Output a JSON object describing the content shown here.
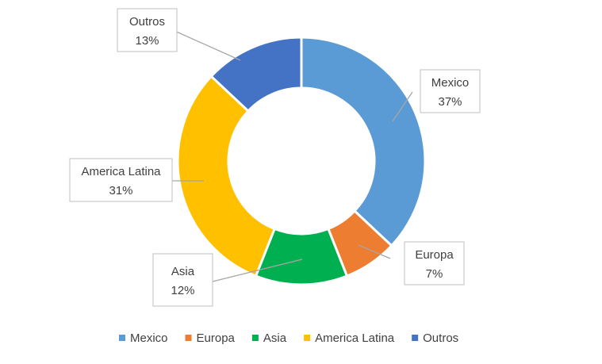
{
  "chart_data": {
    "type": "pie",
    "variant": "doughnut",
    "legend_position": "bottom",
    "categories": [
      "Mexico",
      "Europa",
      "Asia",
      "America Latina",
      "Outros"
    ],
    "values": [
      37,
      7,
      12,
      31,
      13
    ],
    "value_labels": [
      "37%",
      "7%",
      "12%",
      "31%",
      "13%"
    ],
    "colors": [
      "#5B9BD5",
      "#ED7D31",
      "#00B050",
      "#FFC000",
      "#4472C4"
    ]
  }
}
